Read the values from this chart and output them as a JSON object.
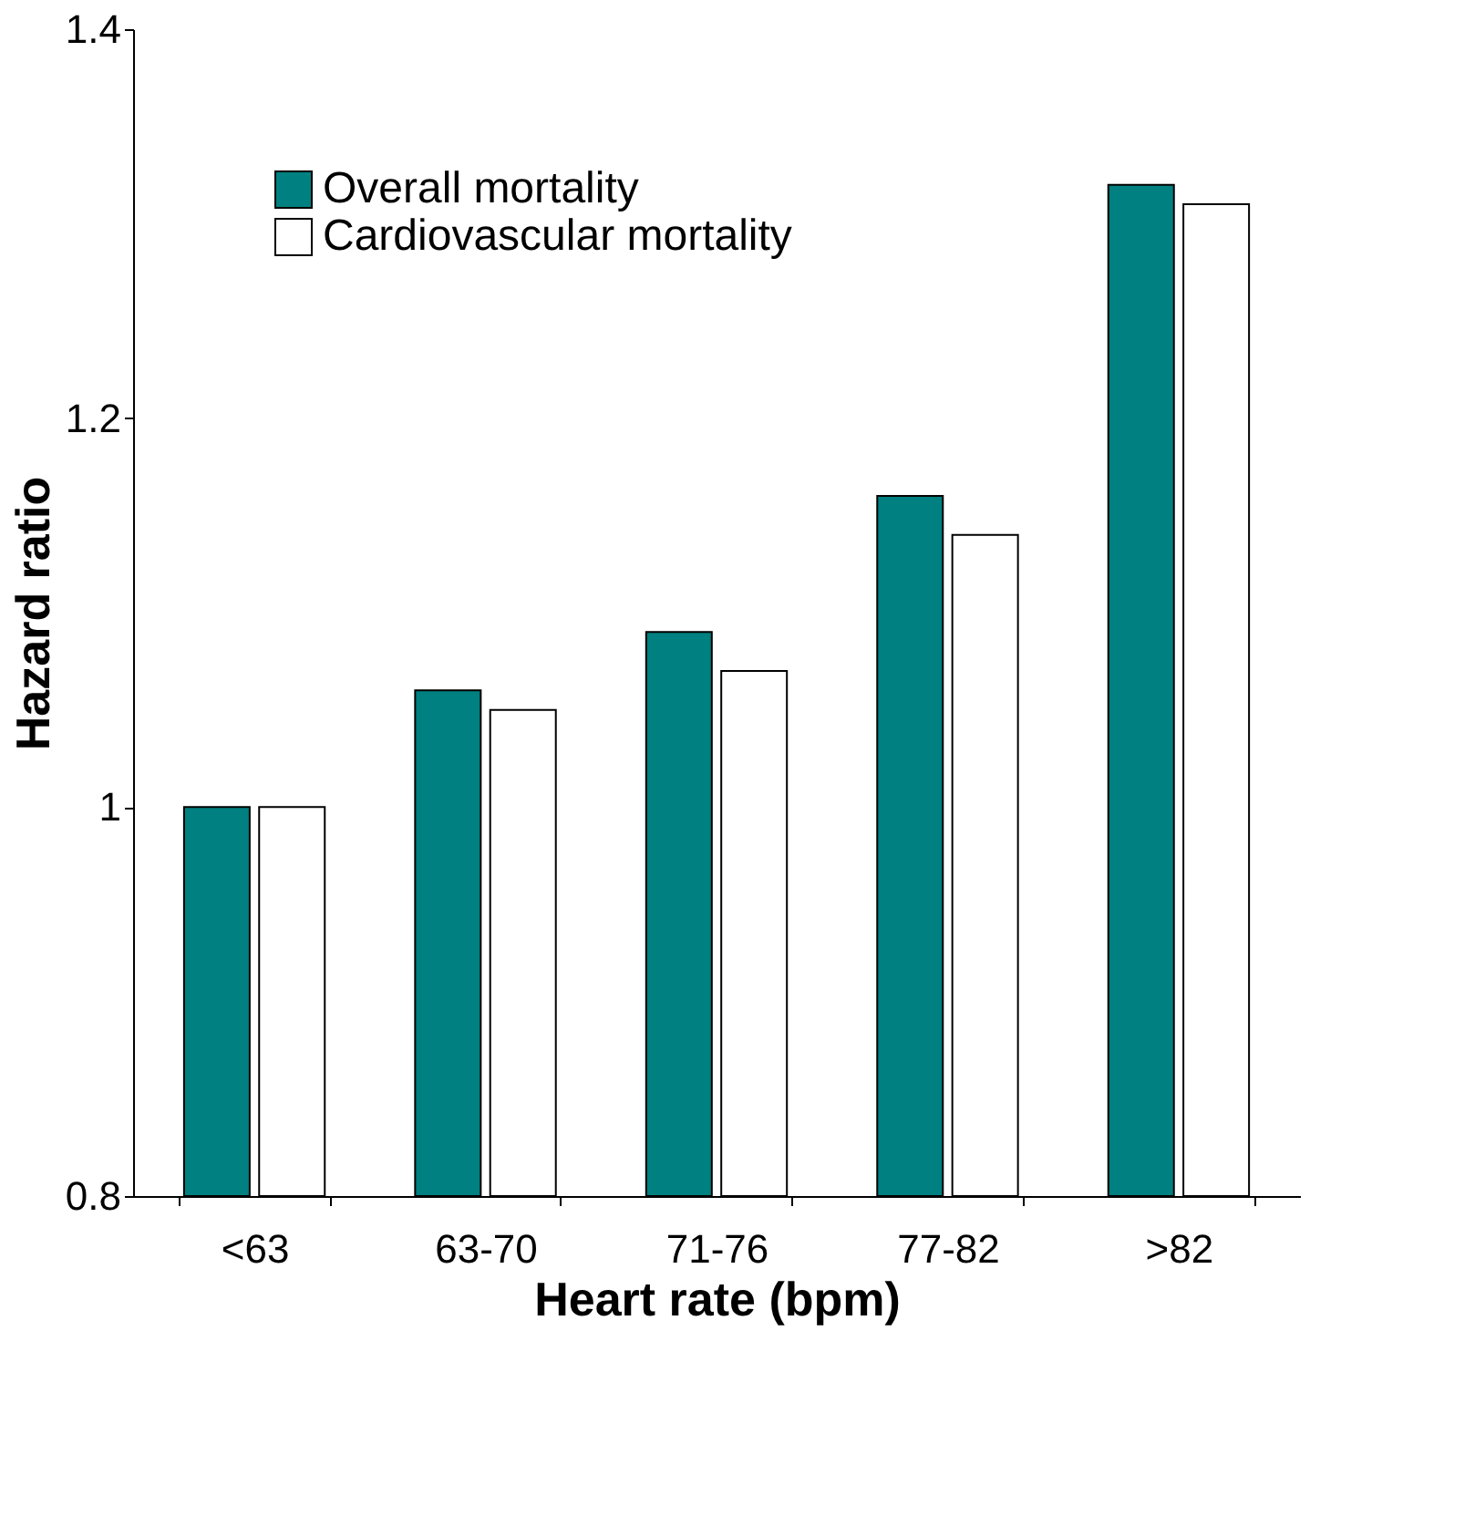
{
  "chart_data": {
    "type": "bar",
    "xlabel": "Heart rate (bpm)",
    "ylabel": "Hazard ratio",
    "categories": [
      "<63",
      "63-70",
      "71-76",
      "77-82",
      ">82"
    ],
    "series": [
      {
        "name": "Overall mortality",
        "color": "#008080",
        "values": [
          1.0,
          1.06,
          1.09,
          1.16,
          1.32
        ]
      },
      {
        "name": "Cardiovascular mortality",
        "color": "#ffffff",
        "values": [
          1.0,
          1.05,
          1.07,
          1.14,
          1.31
        ]
      }
    ],
    "ylim": [
      0.8,
      1.4
    ],
    "yticks": [
      0.8,
      1,
      1.2,
      1.4
    ],
    "grid": false,
    "legend": "top left"
  }
}
